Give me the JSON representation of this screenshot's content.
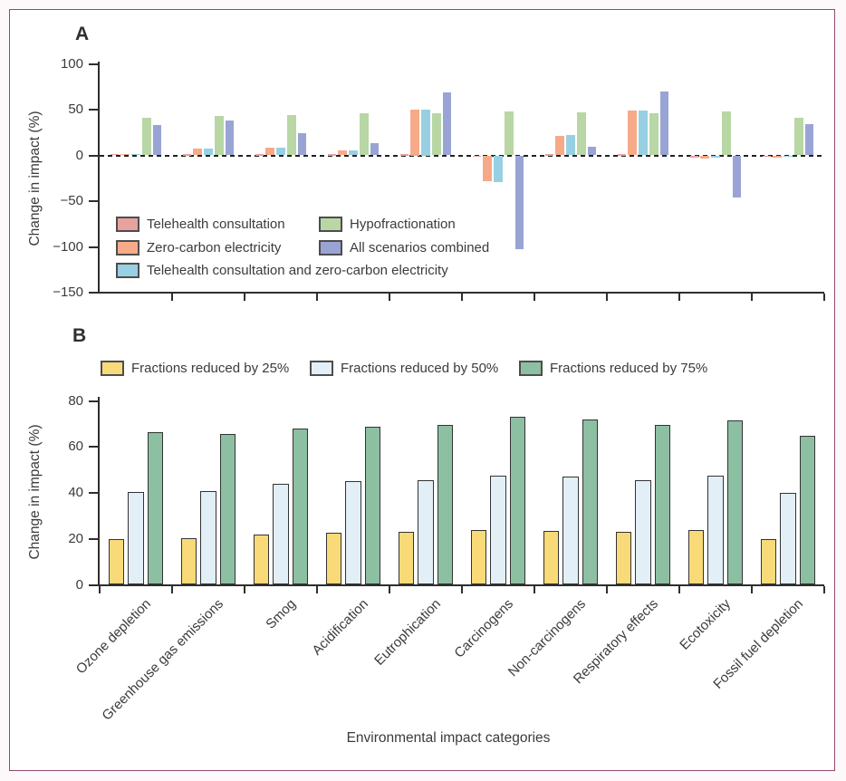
{
  "figure": {
    "panel_a_label": "A",
    "panel_b_label": "B"
  },
  "colors": {
    "frame": "#91496b",
    "outer_background": "#fdf8fa",
    "background": "#ffffff",
    "axis": "#2e2e2e",
    "text": "#3b3b3b",
    "zero_line": "#222222",
    "bar_outline": "#333333",
    "swatch_outline": "#4d4d4d"
  },
  "chart_data": [
    {
      "type": "bar",
      "panel": "A",
      "title": "",
      "ylabel": "Change in impact (%)",
      "xlabel": "",
      "ylim": [
        -150,
        100
      ],
      "yticks": [
        100,
        50,
        0,
        -50,
        -100,
        -150
      ],
      "ytick_labels": [
        "100",
        "50",
        "0",
        "−50",
        "−100",
        "−150"
      ],
      "grid": false,
      "zero_line_style": "dashed",
      "legend_position": "inside-lower-left-two-columns",
      "show_category_labels": false,
      "categories": [
        "Ozone depletion",
        "Greenhouse gas emissions",
        "Smog",
        "Acidification",
        "Eutrophication",
        "Carcinogens",
        "Non-carcinogens",
        "Respiratory effects",
        "Ecotoxicity",
        "Fossil fuel depletion"
      ],
      "series": [
        {
          "name": "Telehealth consultation",
          "color": "#e7a1a1",
          "values": [
            1.5,
            1,
            1,
            1,
            1,
            -1,
            1,
            1,
            -2,
            -1
          ]
        },
        {
          "name": "Zero-carbon electricity",
          "color": "#f6aa88",
          "values": [
            1.5,
            7,
            8,
            5,
            50,
            -28,
            21,
            49,
            -3,
            -2
          ]
        },
        {
          "name": "Telehealth consultation and zero-carbon electricity",
          "color": "#97d0e2",
          "values": [
            1.5,
            7,
            8,
            5,
            50,
            -29,
            22,
            49,
            -2,
            -1
          ]
        },
        {
          "name": "Hypofractionation",
          "color": "#b8d7a4",
          "values": [
            41,
            43,
            44,
            46,
            46,
            48,
            47,
            46,
            48,
            41
          ]
        },
        {
          "name": "All scenarios combined",
          "color": "#99a4d4",
          "values": [
            33,
            38,
            24,
            13,
            69,
            -102,
            9,
            70,
            -46,
            34
          ]
        }
      ]
    },
    {
      "type": "bar",
      "panel": "B",
      "title": "",
      "ylabel": "Change in impact (%)",
      "xlabel": "Environmental impact categories",
      "ylim": [
        0,
        80
      ],
      "yticks": [
        80,
        60,
        40,
        20,
        0
      ],
      "ytick_labels": [
        "80",
        "60",
        "40",
        "20",
        "0"
      ],
      "grid": false,
      "zero_line_style": "axis",
      "legend_position": "top-single-row",
      "show_category_labels": true,
      "categories": [
        "Ozone depletion",
        "Greenhouse gas emissions",
        "Smog",
        "Acidification",
        "Eutrophication",
        "Carcinogens",
        "Non-carcinogens",
        "Respiratory effects",
        "Ecotoxicity",
        "Fossil fuel depletion"
      ],
      "series": [
        {
          "name": "Fractions reduced by 25%",
          "color": "#f9da79",
          "values": [
            20,
            20.5,
            22,
            22.5,
            23,
            24,
            23.5,
            23,
            24,
            20
          ]
        },
        {
          "name": "Fractions reduced by 50%",
          "color": "#e2eff7",
          "values": [
            40.5,
            41,
            44,
            45,
            45.5,
            47.5,
            47,
            45.5,
            47.5,
            40
          ]
        },
        {
          "name": "Fractions reduced by 75%",
          "color": "#8dbfa2",
          "values": [
            66.5,
            65.5,
            68,
            69,
            69.5,
            73,
            72,
            69.5,
            71.5,
            65
          ]
        }
      ]
    }
  ]
}
